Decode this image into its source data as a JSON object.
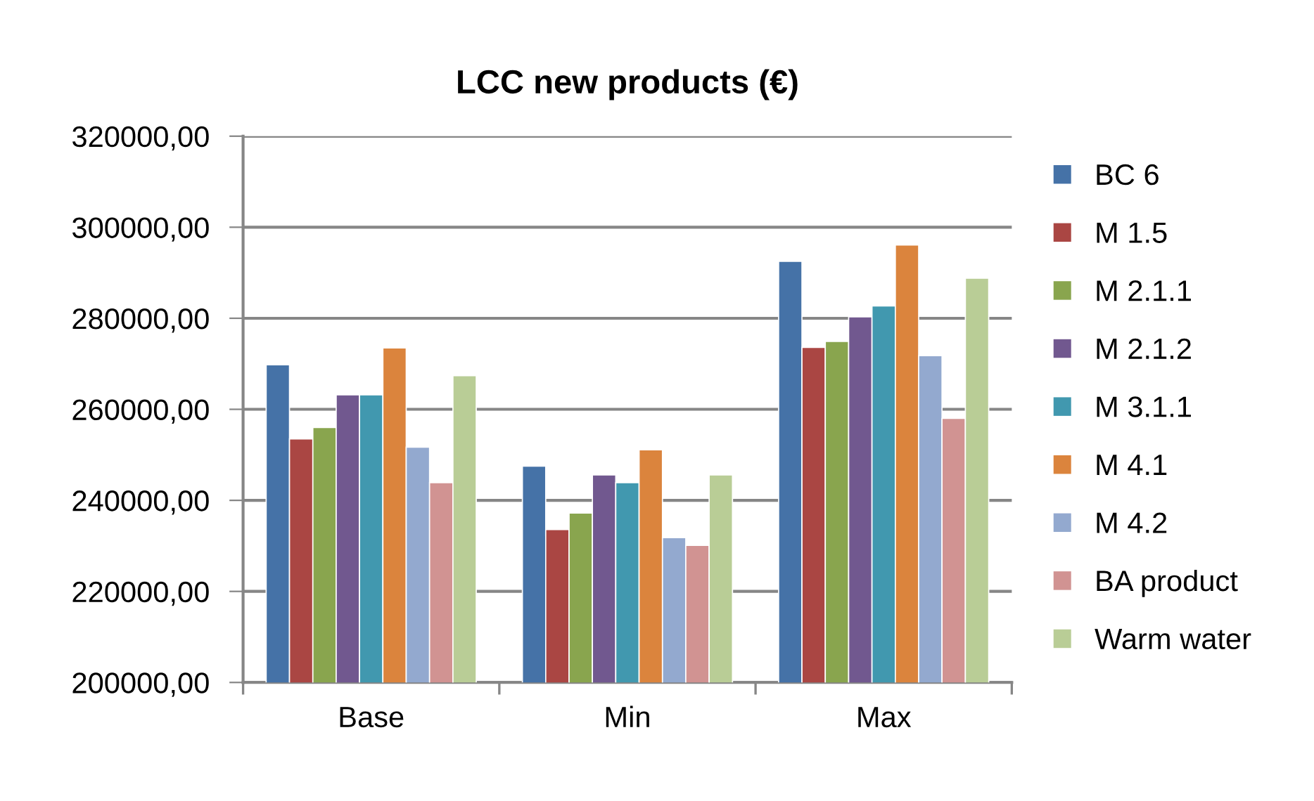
{
  "chart_data": {
    "type": "bar",
    "title": "LCC new products (€)",
    "categories": [
      "Base",
      "Min",
      "Max"
    ],
    "series": [
      {
        "name": "BC 6",
        "color": "#4572a7",
        "values": [
          269800,
          247500,
          292500
        ]
      },
      {
        "name": "M 1.5",
        "color": "#aa4643",
        "values": [
          253500,
          233600,
          273600
        ]
      },
      {
        "name": "M 2.1.1",
        "color": "#89a54e",
        "values": [
          256000,
          237200,
          274900
        ]
      },
      {
        "name": "M 2.1.2",
        "color": "#71588f",
        "values": [
          263200,
          245600,
          280300
        ]
      },
      {
        "name": "M 3.1.1",
        "color": "#4198af",
        "values": [
          263200,
          243900,
          282700
        ]
      },
      {
        "name": "M 4.1",
        "color": "#db843d",
        "values": [
          273500,
          251100,
          296100
        ]
      },
      {
        "name": "M 4.2",
        "color": "#93a9cf",
        "values": [
          251700,
          231800,
          271800
        ]
      },
      {
        "name": "BA product",
        "color": "#d19392",
        "values": [
          243900,
          230100,
          258000
        ]
      },
      {
        "name": "Warm water",
        "color": "#b9cd96",
        "values": [
          267400,
          245600,
          288800
        ]
      }
    ],
    "ylim": [
      200000,
      320000
    ],
    "yticks": [
      {
        "value": 200000,
        "label": "200000,00"
      },
      {
        "value": 220000,
        "label": "220000,00"
      },
      {
        "value": 240000,
        "label": "240000,00"
      },
      {
        "value": 260000,
        "label": "260000,00"
      },
      {
        "value": 280000,
        "label": "280000,00"
      },
      {
        "value": 300000,
        "label": "300000,00"
      },
      {
        "value": 320000,
        "label": "320000,00"
      }
    ],
    "grid": "y",
    "legend": "right"
  }
}
